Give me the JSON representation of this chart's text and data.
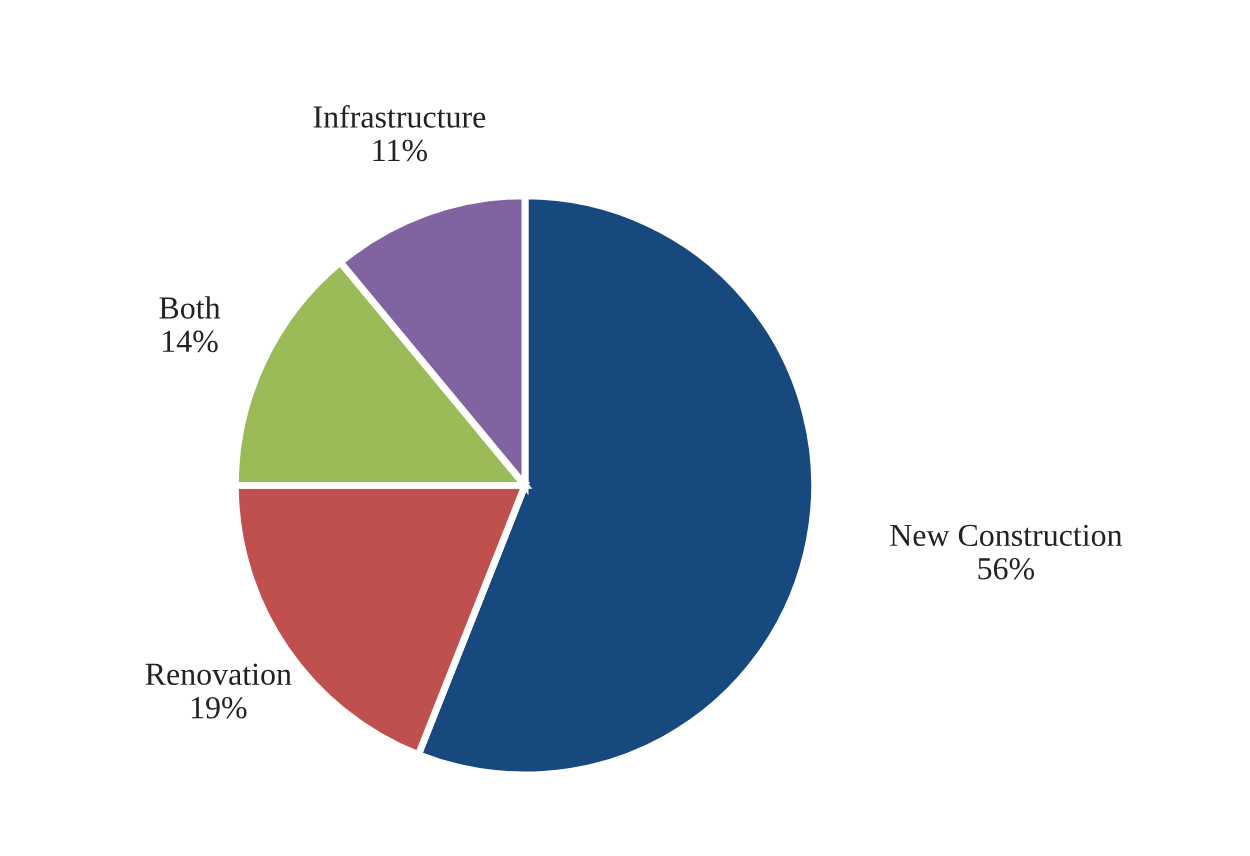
{
  "chart_data": {
    "type": "pie",
    "categories": [
      "New Construction",
      "Renovation",
      "Both",
      "Infrastructure"
    ],
    "values": [
      56,
      19,
      14,
      11
    ],
    "colors": [
      "#17497e",
      "#c0504d",
      "#9bbb59",
      "#8064a2"
    ],
    "value_labels": [
      "56%",
      "19%",
      "14%",
      "11%"
    ],
    "legend": false
  }
}
